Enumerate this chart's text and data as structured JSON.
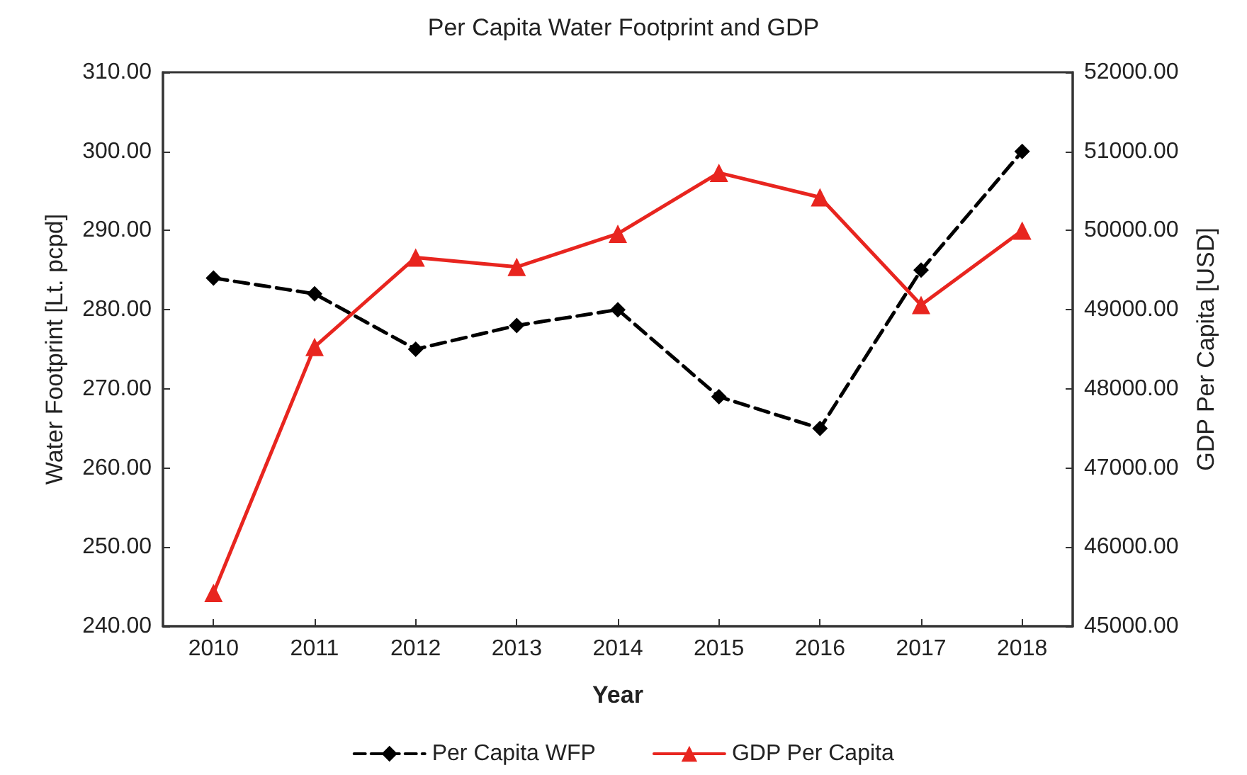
{
  "chart_data": {
    "type": "line",
    "title": "Per Capita Water Footprint and GDP",
    "xlabel": "Year",
    "ylabel": "Water Footprint [Lt. pcpd]",
    "y2label": "GDP Per Capita [USD]",
    "categories": [
      "2010",
      "2011",
      "2012",
      "2013",
      "2014",
      "2015",
      "2016",
      "2017",
      "2018"
    ],
    "series": [
      {
        "name": "Per Capita WFP",
        "color": "#000000",
        "values": [
          284,
          282,
          275,
          278,
          280,
          269,
          265,
          285,
          300
        ],
        "marker": "diamond",
        "line_style": "dashed"
      },
      {
        "name": "GDP Per Capita",
        "color": "#e8251f",
        "values": [
          45420,
          48530,
          49660,
          49540,
          49960,
          50730,
          50420,
          49060,
          50000
        ],
        "marker": "triangle",
        "line_style": "solid",
        "axis": "y2"
      }
    ],
    "ylim": [
      240,
      310
    ],
    "yticks": [
      {
        "value": 240,
        "label": "240.00"
      },
      {
        "value": 250,
        "label": "250.00"
      },
      {
        "value": 260,
        "label": "260.00"
      },
      {
        "value": 270,
        "label": "270.00"
      },
      {
        "value": 280,
        "label": "280.00"
      },
      {
        "value": 290,
        "label": "290.00"
      },
      {
        "value": 300,
        "label": "300.00"
      },
      {
        "value": 310,
        "label": "310.00"
      }
    ],
    "y2lim": [
      45000,
      52000
    ],
    "y2ticks": [
      {
        "value": 45000,
        "label": "45000.00"
      },
      {
        "value": 46000,
        "label": "46000.00"
      },
      {
        "value": 47000,
        "label": "47000.00"
      },
      {
        "value": 48000,
        "label": "48000.00"
      },
      {
        "value": 49000,
        "label": "49000.00"
      },
      {
        "value": 50000,
        "label": "50000.00"
      },
      {
        "value": 51000,
        "label": "51000.00"
      },
      {
        "value": 52000,
        "label": "52000.00"
      }
    ],
    "grid": false,
    "legend": "bottom"
  }
}
